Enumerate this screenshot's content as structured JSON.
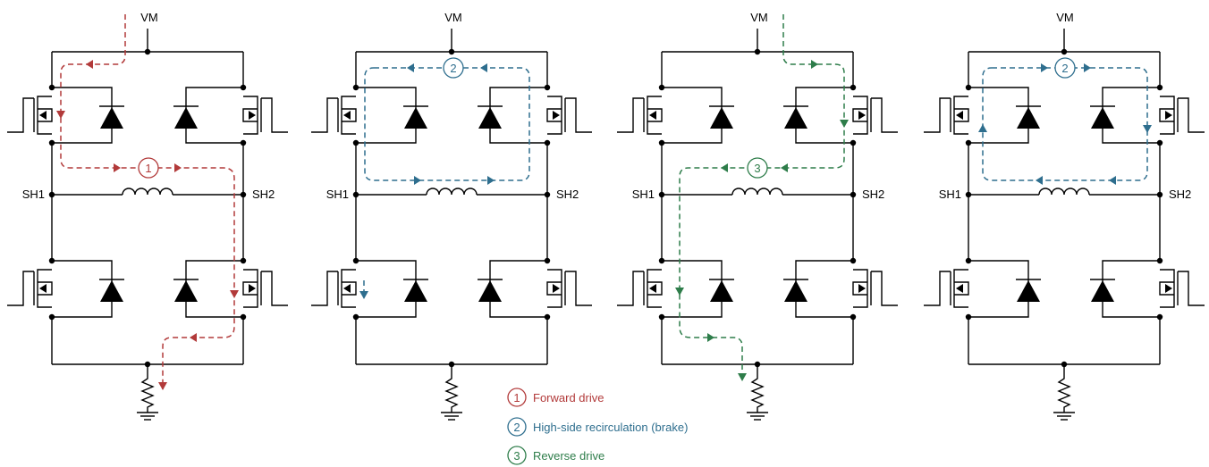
{
  "supply_label": "VM",
  "node_left_label": "SH1",
  "node_right_label": "SH2",
  "colors": {
    "forward": "#b23a3a",
    "brake": "#2e6e8e",
    "reverse": "#2e7d4a",
    "wire": "#000000"
  },
  "panels": [
    {
      "path_number": "1",
      "path_color": "forward"
    },
    {
      "path_number": "2",
      "path_color": "brake"
    },
    {
      "path_number": "3",
      "path_color": "reverse"
    },
    {
      "path_number": "2",
      "path_color": "brake"
    }
  ],
  "legend": [
    {
      "number": "1",
      "label": "Forward drive",
      "color": "forward"
    },
    {
      "number": "2",
      "label": "High-side recirculation (brake)",
      "color": "brake"
    },
    {
      "number": "3",
      "label": "Reverse drive",
      "color": "reverse"
    }
  ]
}
